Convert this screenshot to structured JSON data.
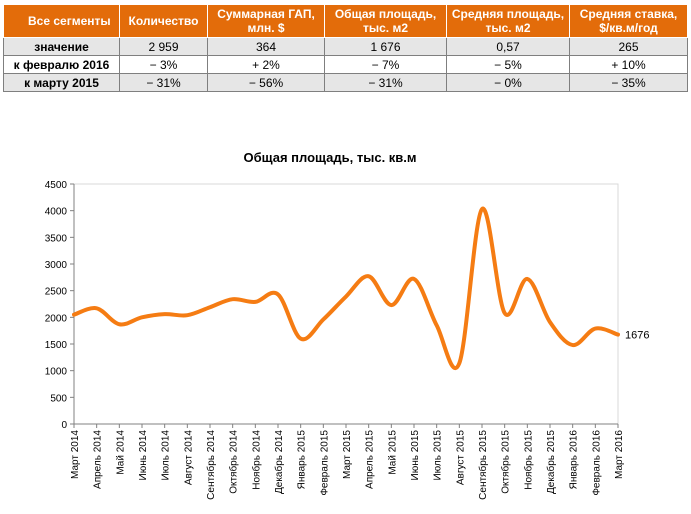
{
  "table": {
    "headers": [
      "Все сегменты",
      "Количество",
      "Суммарная ГАП, млн. $",
      "Общая площадь, тыс. м2",
      "Средняя площадь, тыс. м2",
      "Средняя ставка, $/кв.м/год"
    ],
    "rows": [
      {
        "label": "значение",
        "cells": [
          "2 959",
          "364",
          "1 676",
          "0,57",
          "265"
        ]
      },
      {
        "label": "к февралю 2016",
        "cells": [
          "− 3%",
          "+ 2%",
          "− 7%",
          "− 5%",
          "+ 10%"
        ]
      },
      {
        "label": "к марту 2015",
        "cells": [
          "− 31%",
          "− 56%",
          "− 31%",
          "− 0%",
          "− 35%"
        ]
      }
    ]
  },
  "chart_data": {
    "type": "line",
    "title": "Общая площадь, тыс. кв.м",
    "xlabel": "",
    "ylabel": "",
    "ylim": [
      0,
      4500
    ],
    "yticks": [
      0,
      500,
      1000,
      1500,
      2000,
      2500,
      3000,
      3500,
      4000,
      4500
    ],
    "grid": false,
    "legend": "none",
    "categories": [
      "Март 2014",
      "Апрель 2014",
      "Май 2014",
      "Июнь 2014",
      "Июль 2014",
      "Август 2014",
      "Сентябрь 2014",
      "Октябрь 2014",
      "Ноябрь 2014",
      "Декабрь 2014",
      "Январь 2015",
      "Февраль 2015",
      "Март 2015",
      "Апрель 2015",
      "Май 2015",
      "Июнь 2015",
      "Июль 2015",
      "Август 2015",
      "Сентябрь 2015",
      "Октябрь 2015",
      "Ноябрь 2015",
      "Декабрь 2015",
      "Январь 2016",
      "Февраль 2016",
      "Март 2016"
    ],
    "series": [
      {
        "values": [
          2050,
          2170,
          1870,
          2000,
          2060,
          2040,
          2190,
          2340,
          2290,
          2430,
          1600,
          1960,
          2390,
          2770,
          2230,
          2720,
          1850,
          1140,
          4030,
          2080,
          2720,
          1910,
          1480,
          1790,
          1676
        ],
        "color": "#f57c13"
      }
    ],
    "last_value_label": "1676"
  }
}
